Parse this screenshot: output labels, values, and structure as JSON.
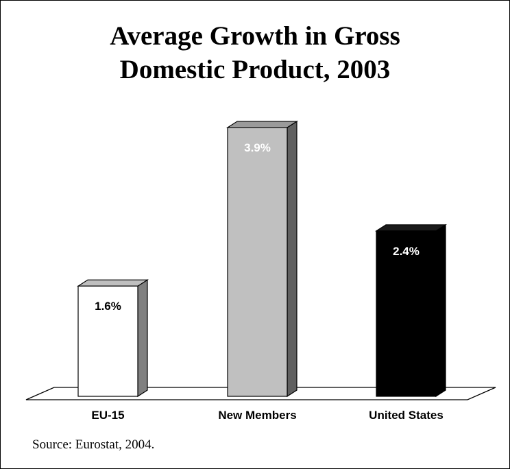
{
  "chart_data": {
    "type": "bar",
    "title_line1": "Average Growth in Gross",
    "title_line2": "Domestic Product, 2003",
    "title": "Average Growth in Gross Domestic Product, 2003",
    "categories": [
      "EU-15",
      "New Members",
      "United States"
    ],
    "values": [
      1.6,
      3.9,
      2.4
    ],
    "value_labels": [
      "1.6%",
      "3.9%",
      "2.4%"
    ],
    "bar_colors": [
      "#ffffff",
      "#c0c0c0",
      "#000000"
    ],
    "label_colors": [
      "#000000",
      "#ffffff",
      "#ffffff"
    ],
    "xlabel": "",
    "ylabel": "",
    "ylim": [
      0,
      4.0
    ],
    "grid": false,
    "legend": "none",
    "style": "3d-bar"
  },
  "source": "Source: Eurostat, 2004."
}
